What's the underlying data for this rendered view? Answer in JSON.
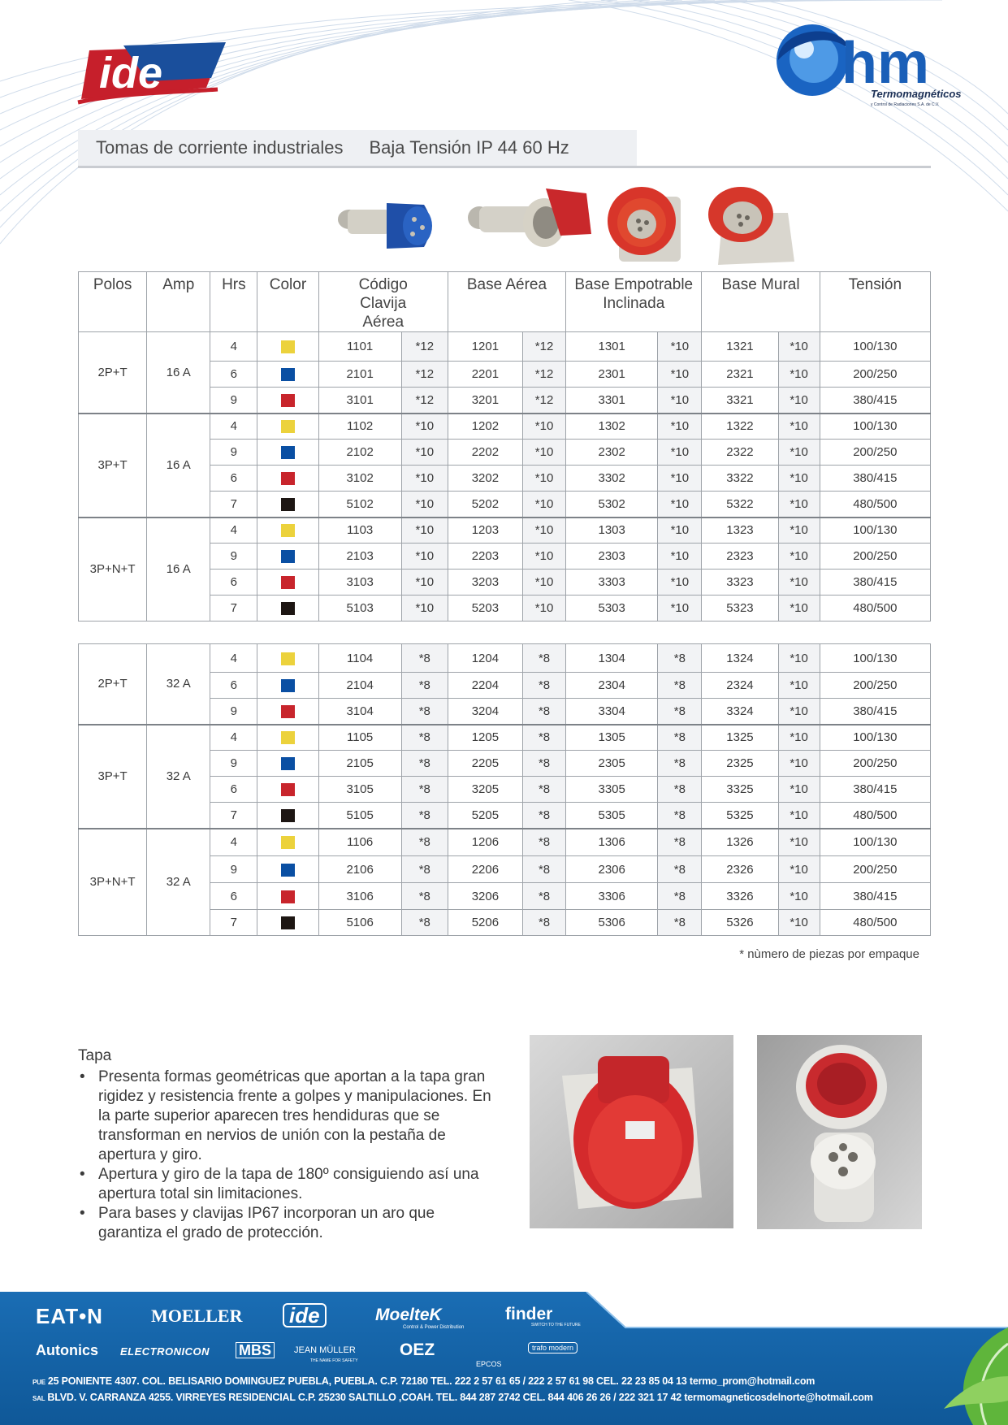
{
  "brand_colors": {
    "accent_blue": "#1a64a8",
    "accent_red": "#d3202a"
  },
  "logos": {
    "left": "ide",
    "right_name": "hm",
    "right_sub": "Termomagnéticos",
    "right_tagline": "y Control de Radiaciones S.A. de C.V."
  },
  "header": {
    "title": "Tomas de corriente industriales",
    "subtitle": "Baja Tensión IP 44 60 Hz"
  },
  "table": {
    "columns": [
      "Polos",
      "Amp",
      "Hrs",
      "Color",
      "Código Clavija Aérea",
      "Base Aérea",
      "Base Empotrable Inclinada",
      "Base Mural",
      "Tensión"
    ],
    "swatch_colors": {
      "yellow": "#ecd23c",
      "blue": "#0a4fa3",
      "red": "#c8252c",
      "black": "#1d1613"
    },
    "blocks_16a": [
      {
        "polos": "2P+T",
        "amp": "16 A",
        "rows": [
          {
            "hrs": "4",
            "color": "yellow",
            "clavija": "1101",
            "clavija_qty": "*12",
            "aerea": "1201",
            "aerea_qty": "*12",
            "empotrable": "1301",
            "empotrable_qty": "*10",
            "mural": "1321",
            "mural_qty": "*10",
            "tension": "100/130"
          },
          {
            "hrs": "6",
            "color": "blue",
            "clavija": "2101",
            "clavija_qty": "*12",
            "aerea": "2201",
            "aerea_qty": "*12",
            "empotrable": "2301",
            "empotrable_qty": "*10",
            "mural": "2321",
            "mural_qty": "*10",
            "tension": "200/250"
          },
          {
            "hrs": "9",
            "color": "red",
            "clavija": "3101",
            "clavija_qty": "*12",
            "aerea": "3201",
            "aerea_qty": "*12",
            "empotrable": "3301",
            "empotrable_qty": "*10",
            "mural": "3321",
            "mural_qty": "*10",
            "tension": "380/415"
          }
        ]
      },
      {
        "polos": "3P+T",
        "amp": "16 A",
        "rows": [
          {
            "hrs": "4",
            "color": "yellow",
            "clavija": "1102",
            "clavija_qty": "*10",
            "aerea": "1202",
            "aerea_qty": "*10",
            "empotrable": "1302",
            "empotrable_qty": "*10",
            "mural": "1322",
            "mural_qty": "*10",
            "tension": "100/130"
          },
          {
            "hrs": "9",
            "color": "blue",
            "clavija": "2102",
            "clavija_qty": "*10",
            "aerea": "2202",
            "aerea_qty": "*10",
            "empotrable": "2302",
            "empotrable_qty": "*10",
            "mural": "2322",
            "mural_qty": "*10",
            "tension": "200/250"
          },
          {
            "hrs": "6",
            "color": "red",
            "clavija": "3102",
            "clavija_qty": "*10",
            "aerea": "3202",
            "aerea_qty": "*10",
            "empotrable": "3302",
            "empotrable_qty": "*10",
            "mural": "3322",
            "mural_qty": "*10",
            "tension": "380/415"
          },
          {
            "hrs": "7",
            "color": "black",
            "clavija": "5102",
            "clavija_qty": "*10",
            "aerea": "5202",
            "aerea_qty": "*10",
            "empotrable": "5302",
            "empotrable_qty": "*10",
            "mural": "5322",
            "mural_qty": "*10",
            "tension": "480/500"
          }
        ]
      },
      {
        "polos": "3P+N+T",
        "amp": "16 A",
        "rows": [
          {
            "hrs": "4",
            "color": "yellow",
            "clavija": "1103",
            "clavija_qty": "*10",
            "aerea": "1203",
            "aerea_qty": "*10",
            "empotrable": "1303",
            "empotrable_qty": "*10",
            "mural": "1323",
            "mural_qty": "*10",
            "tension": "100/130"
          },
          {
            "hrs": "9",
            "color": "blue",
            "clavija": "2103",
            "clavija_qty": "*10",
            "aerea": "2203",
            "aerea_qty": "*10",
            "empotrable": "2303",
            "empotrable_qty": "*10",
            "mural": "2323",
            "mural_qty": "*10",
            "tension": "200/250"
          },
          {
            "hrs": "6",
            "color": "red",
            "clavija": "3103",
            "clavija_qty": "*10",
            "aerea": "3203",
            "aerea_qty": "*10",
            "empotrable": "3303",
            "empotrable_qty": "*10",
            "mural": "3323",
            "mural_qty": "*10",
            "tension": "380/415"
          },
          {
            "hrs": "7",
            "color": "black",
            "clavija": "5103",
            "clavija_qty": "*10",
            "aerea": "5203",
            "aerea_qty": "*10",
            "empotrable": "5303",
            "empotrable_qty": "*10",
            "mural": "5323",
            "mural_qty": "*10",
            "tension": "480/500"
          }
        ]
      }
    ],
    "blocks_32a": [
      {
        "polos": "2P+T",
        "amp": "32 A",
        "rows": [
          {
            "hrs": "4",
            "color": "yellow",
            "clavija": "1104",
            "clavija_qty": "*8",
            "aerea": "1204",
            "aerea_qty": "*8",
            "empotrable": "1304",
            "empotrable_qty": "*8",
            "mural": "1324",
            "mural_qty": "*10",
            "tension": "100/130"
          },
          {
            "hrs": "6",
            "color": "blue",
            "clavija": "2104",
            "clavija_qty": "*8",
            "aerea": "2204",
            "aerea_qty": "*8",
            "empotrable": "2304",
            "empotrable_qty": "*8",
            "mural": "2324",
            "mural_qty": "*10",
            "tension": "200/250"
          },
          {
            "hrs": "9",
            "color": "red",
            "clavija": "3104",
            "clavija_qty": "*8",
            "aerea": "3204",
            "aerea_qty": "*8",
            "empotrable": "3304",
            "empotrable_qty": "*8",
            "mural": "3324",
            "mural_qty": "*10",
            "tension": "380/415"
          }
        ]
      },
      {
        "polos": "3P+T",
        "amp": "32 A",
        "rows": [
          {
            "hrs": "4",
            "color": "yellow",
            "clavija": "1105",
            "clavija_qty": "*8",
            "aerea": "1205",
            "aerea_qty": "*8",
            "empotrable": "1305",
            "empotrable_qty": "*8",
            "mural": "1325",
            "mural_qty": "*10",
            "tension": "100/130"
          },
          {
            "hrs": "9",
            "color": "blue",
            "clavija": "2105",
            "clavija_qty": "*8",
            "aerea": "2205",
            "aerea_qty": "*8",
            "empotrable": "2305",
            "empotrable_qty": "*8",
            "mural": "2325",
            "mural_qty": "*10",
            "tension": "200/250"
          },
          {
            "hrs": "6",
            "color": "red",
            "clavija": "3105",
            "clavija_qty": "*8",
            "aerea": "3205",
            "aerea_qty": "*8",
            "empotrable": "3305",
            "empotrable_qty": "*8",
            "mural": "3325",
            "mural_qty": "*10",
            "tension": "380/415"
          },
          {
            "hrs": "7",
            "color": "black",
            "clavija": "5105",
            "clavija_qty": "*8",
            "aerea": "5205",
            "aerea_qty": "*8",
            "empotrable": "5305",
            "empotrable_qty": "*8",
            "mural": "5325",
            "mural_qty": "*10",
            "tension": "480/500"
          }
        ]
      },
      {
        "polos": "3P+N+T",
        "amp": "32 A",
        "rows": [
          {
            "hrs": "4",
            "color": "yellow",
            "clavija": "1106",
            "clavija_qty": "*8",
            "aerea": "1206",
            "aerea_qty": "*8",
            "empotrable": "1306",
            "empotrable_qty": "*8",
            "mural": "1326",
            "mural_qty": "*10",
            "tension": "100/130"
          },
          {
            "hrs": "9",
            "color": "blue",
            "clavija": "2106",
            "clavija_qty": "*8",
            "aerea": "2206",
            "aerea_qty": "*8",
            "empotrable": "2306",
            "empotrable_qty": "*8",
            "mural": "2326",
            "mural_qty": "*10",
            "tension": "200/250"
          },
          {
            "hrs": "6",
            "color": "red",
            "clavija": "3106",
            "clavija_qty": "*8",
            "aerea": "3206",
            "aerea_qty": "*8",
            "empotrable": "3306",
            "empotrable_qty": "*8",
            "mural": "3326",
            "mural_qty": "*10",
            "tension": "380/415"
          },
          {
            "hrs": "7",
            "color": "black",
            "clavija": "5106",
            "clavija_qty": "*8",
            "aerea": "5206",
            "aerea_qty": "*8",
            "empotrable": "5306",
            "empotrable_qty": "*8",
            "mural": "5326",
            "mural_qty": "*10",
            "tension": "480/500"
          }
        ]
      }
    ]
  },
  "footnote": "* nùmero de piezas por empaque",
  "tapa": {
    "title": "Tapa",
    "bullets": [
      "Presenta formas geométricas que aportan a la tapa gran rigidez y resistencia frente a golpes y manipulaciones. En la parte superior aparecen tres hendiduras que se transforman en nervios de unión con la pestaña de apertura y giro.",
      "Apertura y giro de la tapa de 180º consiguiendo así una apertura total sin limitaciones.",
      "Para bases y clavijas IP67 incorporan un aro que garantiza el grado de protección."
    ]
  },
  "footer": {
    "brands": {
      "eaton": "EAT•N",
      "moeller": "MOELLER",
      "ide": "ide",
      "moeltek": "MoeltеK",
      "moeltek_sub": "Control & Power Distribution",
      "finder": "finder",
      "finder_sub": "SWITCH TO THE FUTURE",
      "autonics": "Autonics",
      "electronicon": "ELECTRONICON",
      "mbs": "MBS",
      "jeanmuller": "JEAN MÜLLER",
      "jeanmuller_sub": "THE NAME FOR SAFETY",
      "oez": "OEZ",
      "epcos": "EPCOS",
      "trafo": "trafo modern"
    },
    "address_1_tag": "PUE",
    "address_1": "25 PONIENTE 4307. COL. BELISARIO DOMINGUEZ PUEBLA, PUEBLA. C.P. 72180  TEL. 222 2 57 61 65 / 222 2 57 61 98  CEL. 22 23 85 04 13  termo_prom@hotmail.com",
    "address_2_tag": "SAL",
    "address_2": "BLVD. V. CARRANZA 4255. VIRREYES RESIDENCIAL C.P. 25230 SALTILLO ,COAH. TEL. 844 287 2742 CEL. 844 406 26 26 / 222 321 17 42 termomagneticosdelnorte@hotmail.com"
  }
}
